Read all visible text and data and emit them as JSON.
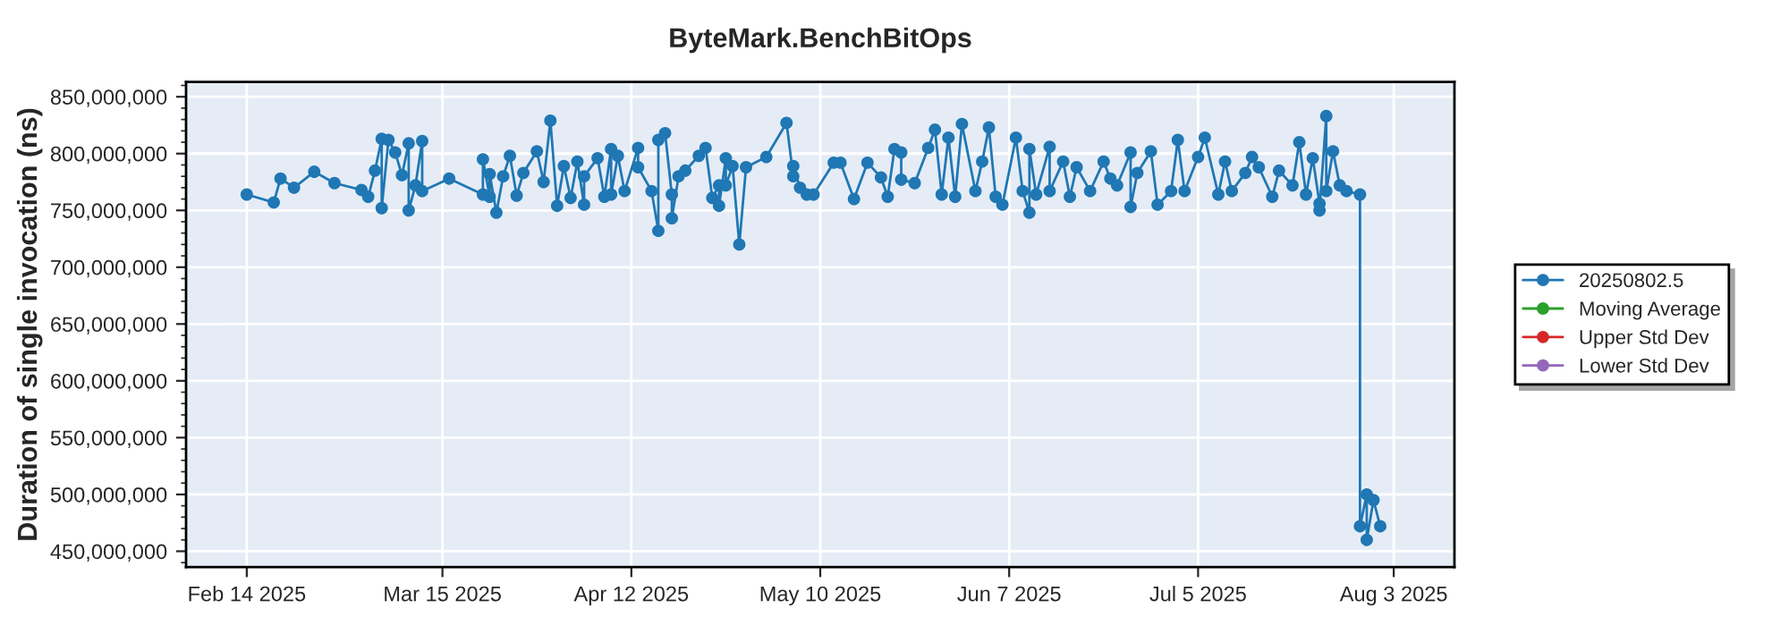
{
  "chart_data": {
    "type": "line",
    "title": "ByteMark.BenchBitOps",
    "ylabel": "Duration of single invocation (ns)",
    "xlim": [
      "2025-02-05",
      "2025-08-12"
    ],
    "xticks": [
      {
        "value": "2025-02-14",
        "label": "Feb 14 2025"
      },
      {
        "value": "2025-03-15",
        "label": "Mar 15 2025"
      },
      {
        "value": "2025-04-12",
        "label": "Apr 12 2025"
      },
      {
        "value": "2025-05-10",
        "label": "May 10 2025"
      },
      {
        "value": "2025-06-07",
        "label": "Jun 7 2025"
      },
      {
        "value": "2025-07-05",
        "label": "Jul 5 2025"
      },
      {
        "value": "2025-08-03",
        "label": "Aug 3 2025"
      }
    ],
    "ylim": [
      436000000,
      863000000
    ],
    "yticks": [
      {
        "value": 450000000,
        "label": "450,000,000"
      },
      {
        "value": 500000000,
        "label": "500,000,000"
      },
      {
        "value": 550000000,
        "label": "550,000,000"
      },
      {
        "value": 600000000,
        "label": "600,000,000"
      },
      {
        "value": 650000000,
        "label": "650,000,000"
      },
      {
        "value": 700000000,
        "label": "700,000,000"
      },
      {
        "value": 750000000,
        "label": "750,000,000"
      },
      {
        "value": 800000000,
        "label": "800,000,000"
      },
      {
        "value": 850000000,
        "label": "850,000,000"
      }
    ],
    "grid": true,
    "legend": "right",
    "marker": "circle",
    "line_style": "solid",
    "series": [
      {
        "name": "20250802.5",
        "color": "#1f77b4",
        "x": [
          "2025-02-14",
          "2025-02-18",
          "2025-02-19",
          "2025-02-21",
          "2025-02-24",
          "2025-02-27",
          "2025-03-03",
          "2025-03-04",
          "2025-03-05",
          "2025-03-06",
          "2025-03-06",
          "2025-03-07",
          "2025-03-08",
          "2025-03-09",
          "2025-03-10",
          "2025-03-10",
          "2025-03-11",
          "2025-03-12",
          "2025-03-12",
          "2025-03-16",
          "2025-03-21",
          "2025-03-21",
          "2025-03-22",
          "2025-03-22",
          "2025-03-23",
          "2025-03-24",
          "2025-03-25",
          "2025-03-26",
          "2025-03-27",
          "2025-03-29",
          "2025-03-30",
          "2025-03-31",
          "2025-04-01",
          "2025-04-02",
          "2025-04-03",
          "2025-04-04",
          "2025-04-05",
          "2025-04-05",
          "2025-04-07",
          "2025-04-08",
          "2025-04-09",
          "2025-04-09",
          "2025-04-10",
          "2025-04-11",
          "2025-04-13",
          "2025-04-13",
          "2025-04-15",
          "2025-04-16",
          "2025-04-16",
          "2025-04-17",
          "2025-04-18",
          "2025-04-18",
          "2025-04-19",
          "2025-04-20",
          "2025-04-22",
          "2025-04-23",
          "2025-04-24",
          "2025-04-25",
          "2025-04-25",
          "2025-04-26",
          "2025-04-26",
          "2025-04-27",
          "2025-04-28",
          "2025-04-29",
          "2025-05-02",
          "2025-05-05",
          "2025-05-06",
          "2025-05-06",
          "2025-05-07",
          "2025-05-08",
          "2025-05-09",
          "2025-05-12",
          "2025-05-13",
          "2025-05-15",
          "2025-05-17",
          "2025-05-19",
          "2025-05-20",
          "2025-05-21",
          "2025-05-22",
          "2025-05-22",
          "2025-05-24",
          "2025-05-26",
          "2025-05-27",
          "2025-05-28",
          "2025-05-29",
          "2025-05-30",
          "2025-05-31",
          "2025-06-02",
          "2025-06-03",
          "2025-06-04",
          "2025-06-05",
          "2025-06-06",
          "2025-06-08",
          "2025-06-09",
          "2025-06-10",
          "2025-06-10",
          "2025-06-11",
          "2025-06-13",
          "2025-06-13",
          "2025-06-15",
          "2025-06-16",
          "2025-06-17",
          "2025-06-19",
          "2025-06-21",
          "2025-06-22",
          "2025-06-23",
          "2025-06-25",
          "2025-06-25",
          "2025-06-26",
          "2025-06-28",
          "2025-06-29",
          "2025-07-01",
          "2025-07-02",
          "2025-07-03",
          "2025-07-05",
          "2025-07-06",
          "2025-07-08",
          "2025-07-09",
          "2025-07-10",
          "2025-07-12",
          "2025-07-13",
          "2025-07-14",
          "2025-07-16",
          "2025-07-17",
          "2025-07-19",
          "2025-07-20",
          "2025-07-21",
          "2025-07-22",
          "2025-07-23",
          "2025-07-23",
          "2025-07-24",
          "2025-07-24",
          "2025-07-25",
          "2025-07-26",
          "2025-07-27",
          "2025-07-29",
          "2025-07-29",
          "2025-07-30",
          "2025-07-30",
          "2025-07-31",
          "2025-08-01"
        ],
        "values": [
          764000000,
          757000000,
          778000000,
          770000000,
          784000000,
          774000000,
          768000000,
          762000000,
          785000000,
          813000000,
          752000000,
          812000000,
          801000000,
          781000000,
          809000000,
          750000000,
          772000000,
          811000000,
          767000000,
          778000000,
          764000000,
          795000000,
          762000000,
          782000000,
          748000000,
          780000000,
          798000000,
          763000000,
          783000000,
          802000000,
          775000000,
          829000000,
          754000000,
          789000000,
          761000000,
          793000000,
          755000000,
          780000000,
          796000000,
          762000000,
          804000000,
          764000000,
          798000000,
          767000000,
          805000000,
          788000000,
          767000000,
          732000000,
          812000000,
          818000000,
          764000000,
          743000000,
          780000000,
          785000000,
          798000000,
          805000000,
          761000000,
          772000000,
          754000000,
          796000000,
          772000000,
          789000000,
          720000000,
          788000000,
          797000000,
          827000000,
          780000000,
          789000000,
          770000000,
          764000000,
          764000000,
          792000000,
          792000000,
          760000000,
          792000000,
          779000000,
          762000000,
          804000000,
          801000000,
          777000000,
          774000000,
          805000000,
          821000000,
          764000000,
          814000000,
          762000000,
          826000000,
          767000000,
          793000000,
          823000000,
          762000000,
          755000000,
          814000000,
          767000000,
          748000000,
          804000000,
          764000000,
          806000000,
          767000000,
          793000000,
          762000000,
          788000000,
          767000000,
          793000000,
          778000000,
          772000000,
          801000000,
          753000000,
          783000000,
          802000000,
          755000000,
          767000000,
          812000000,
          767000000,
          797000000,
          814000000,
          764000000,
          793000000,
          767000000,
          783000000,
          797000000,
          788000000,
          762000000,
          785000000,
          772000000,
          810000000,
          764000000,
          796000000,
          756000000,
          750000000,
          833000000,
          767000000,
          802000000,
          772000000,
          767000000,
          764000000,
          472000000,
          500000000,
          460000000,
          495000000,
          472000000
        ]
      },
      {
        "name": "Moving Average",
        "color": "#2ca02c"
      },
      {
        "name": "Upper Std Dev",
        "color": "#d62728"
      },
      {
        "name": "Lower Std Dev",
        "color": "#9467bd"
      }
    ]
  }
}
